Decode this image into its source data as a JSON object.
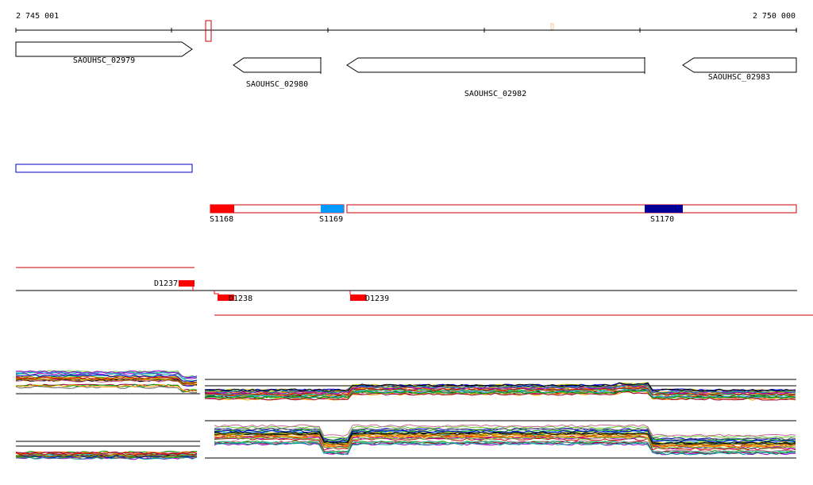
{
  "coordinates": {
    "start_label": "2 745 001",
    "end_label": "2 750 000"
  },
  "genes": [
    {
      "name": "SAOUHSC_02979",
      "strand": "+"
    },
    {
      "name": "SAOUHSC_02980",
      "strand": "-"
    },
    {
      "name": "SAOUHSC_02982",
      "strand": "-"
    },
    {
      "name": "SAOUHSC_02983",
      "strand": "-"
    }
  ],
  "segments": [
    {
      "label": "S1168",
      "color": "#ff0000"
    },
    {
      "label": "S1169",
      "color": "#0099ff"
    },
    {
      "label": "S1170",
      "color": "#000099"
    }
  ],
  "deletions": [
    {
      "label": "D1237"
    },
    {
      "label": "D1238"
    },
    {
      "label": "D1239"
    }
  ],
  "colors": {
    "forward_feature": "#0000cc",
    "reverse_feature": "#cc0000",
    "marker": "#ff0000"
  }
}
